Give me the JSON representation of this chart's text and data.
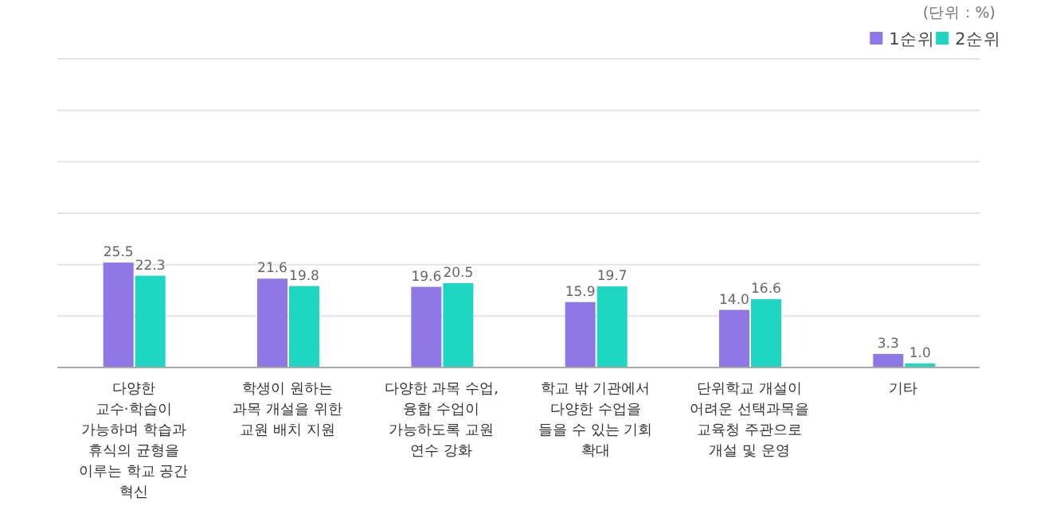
{
  "chart_data": {
    "type": "bar",
    "annotations": [
      "(단위 : %)"
    ],
    "categories": [
      "다양한 교수·학습이 가능하며 학습과 휴식의 균형을 이루는 학교 공간 혁신",
      "학생이 원하는 과목 개설을 위한 교원 배치 지원",
      "다양한 과목 수업, 융합 수업이 가능하도록 교원 연수 강화",
      "학교 밖 기관에서 다양한 수업을 들을 수 있는 기회 확대",
      "단위학교 개설이 어려운 선택과목을 교육청 주관으로 개설 및 운영",
      "기타"
    ],
    "series": [
      {
        "name": "1순위",
        "color": "#8f78e6",
        "values": [
          25.5,
          21.6,
          19.6,
          15.9,
          14.0,
          3.3
        ],
        "value_labels": [
          "25.5",
          "21.6",
          "19.6",
          "15.9",
          "14.0",
          "3.3"
        ]
      },
      {
        "name": "2순위",
        "color": "#1ed6c1",
        "values": [
          22.3,
          19.8,
          20.5,
          19.7,
          16.6,
          1.0
        ],
        "value_labels": [
          "22.3",
          "19.8",
          "20.5",
          "19.7",
          "16.6",
          "1.0"
        ]
      }
    ],
    "ylim": [
      0,
      75
    ],
    "yticks": [
      {
        "value": 0,
        "label": null
      },
      {
        "value": 12.5,
        "label": null
      },
      {
        "value": 25,
        "label": null
      },
      {
        "value": 37.5,
        "label": null
      },
      {
        "value": 50,
        "label": null
      },
      {
        "value": 62.5,
        "label": null
      },
      {
        "value": 75,
        "label": null
      }
    ],
    "grid": true,
    "tick_labels": "x",
    "legend": "top right"
  }
}
